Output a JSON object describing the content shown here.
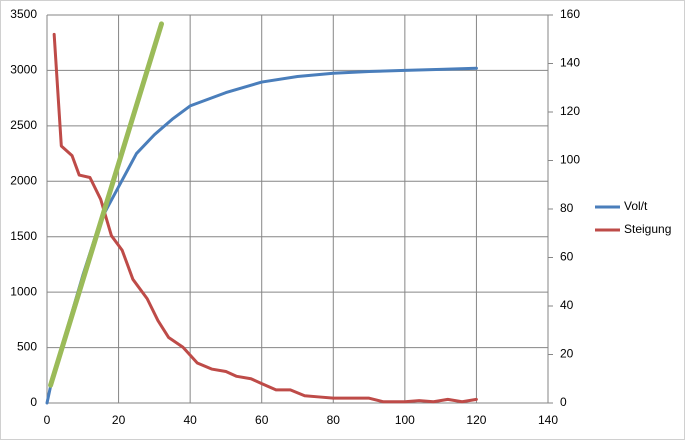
{
  "chart_data": {
    "type": "line",
    "xlim": [
      0,
      140
    ],
    "xticks": [
      0,
      20,
      40,
      60,
      80,
      100,
      120,
      140
    ],
    "ylim": [
      0,
      3500
    ],
    "yticks": [
      0,
      500,
      1000,
      1500,
      2000,
      2500,
      3000,
      3500
    ],
    "y2lim": [
      0,
      160
    ],
    "y2ticks": [
      0,
      20,
      40,
      60,
      80,
      100,
      120,
      140,
      160
    ],
    "grid": true,
    "legend": "right",
    "series": [
      {
        "name": "Vol/t",
        "color": "#4a7ebb",
        "axis": "y",
        "x": [
          0,
          1,
          5,
          10,
          15,
          20,
          25,
          30,
          35,
          40,
          50,
          60,
          70,
          80,
          90,
          100,
          110,
          120
        ],
        "values": [
          0,
          150,
          600,
          1150,
          1650,
          1950,
          2250,
          2420,
          2560,
          2680,
          2800,
          2895,
          2945,
          2975,
          2990,
          3000,
          3010,
          3020
        ]
      },
      {
        "name": "Steigung",
        "color": "#be4b48",
        "axis": "y2",
        "x": [
          2,
          4,
          7,
          9,
          12,
          15,
          18,
          21,
          24,
          28,
          31,
          34,
          38,
          42,
          46,
          50,
          53,
          57,
          60,
          64,
          68,
          72,
          76,
          80,
          90,
          94,
          100,
          104,
          108,
          112,
          116,
          120
        ],
        "values": [
          152,
          106,
          102,
          94,
          93,
          84,
          69,
          63,
          51,
          43,
          34,
          27,
          23,
          16.5,
          14,
          13,
          11,
          10,
          8,
          5.4,
          5.4,
          3,
          2.5,
          2,
          2,
          0.5,
          0.5,
          1,
          0.5,
          1.5,
          0.5,
          1.5
        ]
      },
      {
        "color": "#9bbb59",
        "axis": "y",
        "x": [
          1,
          32
        ],
        "values": [
          160,
          3420
        ]
      }
    ]
  }
}
